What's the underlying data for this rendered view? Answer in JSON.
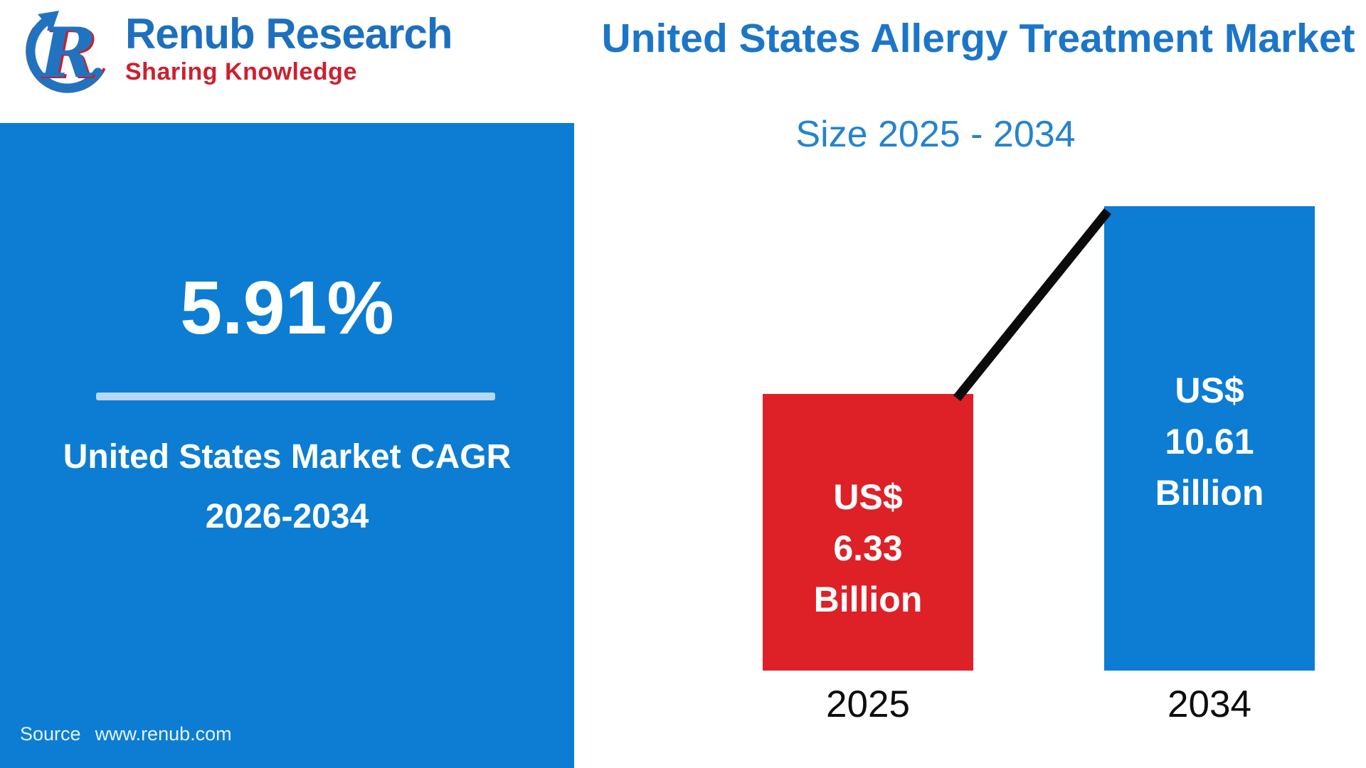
{
  "brand": {
    "name": "Renub Research",
    "tagline": "Sharing Knowledge",
    "logo_letter": "R"
  },
  "header": {
    "title": "United States Allergy Treatment Market",
    "subtitle": "Size 2025 - 2034"
  },
  "cagr_panel": {
    "value": "5.91%",
    "label_line1": "United States Market CAGR",
    "label_line2": "2026-2034",
    "source_label": "Source",
    "source_url": "www.renub.com"
  },
  "chart_data": {
    "type": "bar",
    "title": "United States Allergy Treatment Market",
    "subtitle": "Size 2025 - 2034",
    "unit": "US$ Billion",
    "categories": [
      "2025",
      "2034"
    ],
    "values": [
      6.33,
      10.61
    ],
    "ylim": [
      0,
      11
    ],
    "grid": false,
    "axes_visible": false,
    "legend": "none",
    "trend_line": {
      "from_category": "2025",
      "to_category": "2034",
      "color": "#0B0B0B"
    },
    "bars": [
      {
        "category": "2025",
        "value": 6.33,
        "color": "#DD2127",
        "lines": [
          "US$",
          "6.33",
          "Billion"
        ]
      },
      {
        "category": "2034",
        "value": 10.61,
        "color": "#0C7DD3",
        "lines": [
          "US$",
          "10.61",
          "Billion"
        ]
      }
    ]
  },
  "colors": {
    "primary_blue": "#0C7DD3",
    "bar_red": "#DD2127",
    "title_blue": "#1C76C8",
    "subtitle_blue": "#2583CD",
    "logo_blue": "#1E6FBE",
    "logo_red": "#CE1F2D",
    "divider_light_blue": "#B6D8F2",
    "trend_line_black": "#0B0B0B",
    "text_white": "#FFFFFF"
  }
}
